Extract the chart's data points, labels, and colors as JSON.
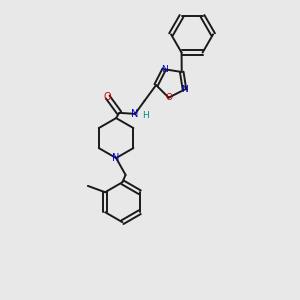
{
  "bg_color": "#e8e8e8",
  "bond_color": "#1a1a1a",
  "nitrogen_color": "#0000cc",
  "oxygen_color": "#cc0000",
  "hydrogen_color": "#008888",
  "line_width": 1.4,
  "fig_width": 3.0,
  "fig_height": 3.0,
  "dpi": 100,
  "xlim": [
    0,
    10
  ],
  "ylim": [
    0,
    14
  ]
}
